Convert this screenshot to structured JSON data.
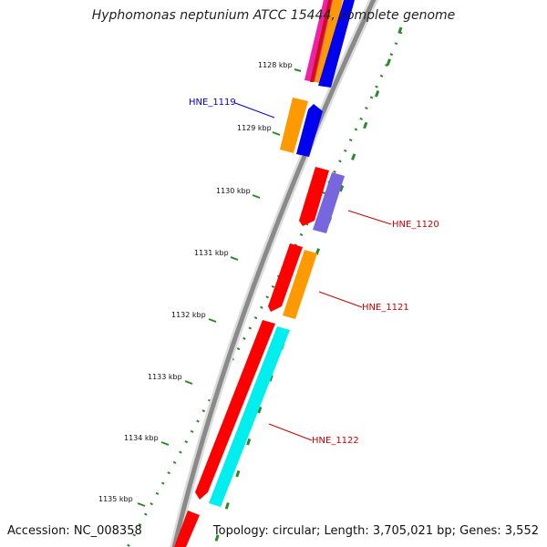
{
  "title": "Hyphomonas neptunium ATCC 15444, complete genome",
  "accession": "Accession: NC_008358",
  "summary": "Topology: circular; Length: 3,705,021 bp; Genes: 3,552",
  "ticks": [
    "1128 kbp",
    "1129 kbp",
    "1130 kbp",
    "1131 kbp",
    "1132 kbp",
    "1133 kbp",
    "1134 kbp",
    "1135 kbp"
  ],
  "labels": {
    "hne1119": "HNE_1119",
    "hne1120": "HNE_1120",
    "hne1121": "HNE_1121",
    "hne1122": "HNE_1122"
  },
  "colors": {
    "backbone": "#8a8a8a",
    "tick": "#2a8a2a",
    "red": "#ff0000",
    "blue": "#0000ee",
    "orange": "#ff9900",
    "magenta": "#ee22aa",
    "purple": "#7766dd",
    "cyan": "#00eeee",
    "label_red": "#cc0000",
    "label_blue": "#0000cc"
  }
}
